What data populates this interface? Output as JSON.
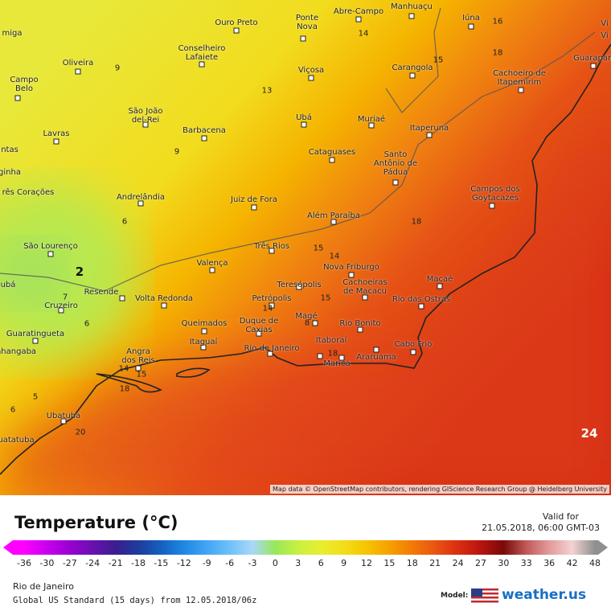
{
  "map": {
    "cities": [
      "Ouro Preto",
      "Ponte Nova",
      "Abre-Campo",
      "Manhuaçu",
      "Iúna",
      "Oliveira",
      "Conselheiro Lafaiete",
      "Viçosa",
      "Carangola",
      "Cachoeiro de Itapemirim",
      "Guarapari",
      "Campo Belo",
      "São João del-Rei",
      "Ubá",
      "Muriaé",
      "Barbacena",
      "Itaperuna",
      "Lavras",
      "Cataguases",
      "Santo Antônio de Pádua",
      "Campos dos Goytacazes",
      "Andrelândia",
      "Juiz de Fora",
      "Além Paraíba",
      "São Lourenço",
      "Três Rios",
      "Valença",
      "Nova Friburgo",
      "Cachoeiras de Macacu",
      "Teresópolis",
      "Resende",
      "Volta Redonda",
      "Petrópolis",
      "Macaé",
      "Rio das Ostras",
      "Cruzeiro",
      "Queimados",
      "Duque de Caxias",
      "Magé",
      "Rio Bonito",
      "Guaratingueta",
      "Itaguaí",
      "Itaboraí",
      "Rio de Janeiro",
      "Cabo Frio",
      "Angra dos Reis",
      "Araruama",
      "Maricá",
      "Ubatuba",
      "miga",
      "ntas",
      "ginha",
      "rês Corações",
      "ubá",
      "nhangaba",
      "uatatuba",
      "Vi",
      "Vi"
    ],
    "contour_labels": [
      14,
      15,
      16,
      18,
      9,
      13,
      9,
      6,
      18,
      15,
      14,
      2,
      15,
      14,
      7,
      6,
      8,
      18,
      14,
      15,
      18,
      5,
      6,
      20,
      24
    ],
    "attribution": "Map data © OpenStreetMap contributors, rendering GIScience Research Group @ Heidelberg University"
  },
  "legend": {
    "title": "Temperature (°C)",
    "valid_label": "Valid for",
    "valid_time": "21.05.2018, 06:00 GMT-03",
    "ticks": [
      -36,
      -30,
      -27,
      -24,
      -21,
      -18,
      -15,
      -12,
      -9,
      -6,
      -3,
      0,
      3,
      6,
      9,
      12,
      15,
      18,
      21,
      24,
      27,
      30,
      33,
      36,
      42,
      48
    ]
  },
  "footer": {
    "region": "Rio de Janeiro",
    "model_run": "Global US Standard (15 days) from 12.05.2018/06z",
    "model_label": "Model:",
    "brand": "weather.us"
  }
}
